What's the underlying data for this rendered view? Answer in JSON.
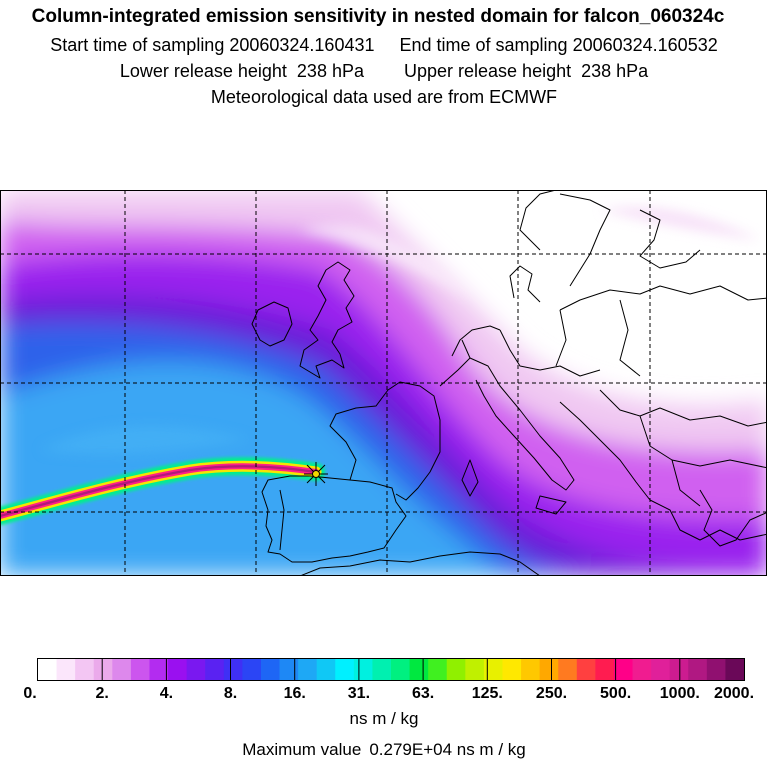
{
  "header": {
    "title": "Column-integrated emission sensitivity in nested domain for falcon_060324c",
    "sampling_line": "Start time of sampling 20060324.160431     End time of sampling 20060324.160532",
    "release_line": "Lower release height  238 hPa        Upper release height  238 hPa",
    "met_line": "Meteorological data used are from ECMWF"
  },
  "colorbar": {
    "tick_labels": [
      "0.",
      "2.",
      "4.",
      "8.",
      "16.",
      "31.",
      "63.",
      "125.",
      "250.",
      "500.",
      "1000.",
      "2000."
    ],
    "colors": [
      "#ffffff",
      "#fbe6fb",
      "#f3c6f3",
      "#ebaaeb",
      "#dd88ec",
      "#cc55ee",
      "#b32cf0",
      "#9a10f0",
      "#7a18f0",
      "#5a22f2",
      "#3f30f5",
      "#2b45f5",
      "#1e66f5",
      "#1e88f5",
      "#1ea8f5",
      "#10c8f5",
      "#00f0ff",
      "#00f0e0",
      "#00f0b0",
      "#00f080",
      "#00e840",
      "#40f020",
      "#90f000",
      "#c0f000",
      "#e8f000",
      "#ffe800",
      "#ffc800",
      "#ffa800",
      "#ff7a20",
      "#ff4040",
      "#ff1c50",
      "#ff0088",
      "#f01c90",
      "#e0209a",
      "#cc1c90",
      "#b01882",
      "#901070",
      "#6a0858"
    ],
    "unit_label": "ns m / kg"
  },
  "max_value": {
    "label": "Maximum value",
    "value": "0.279E+04 ns m / kg"
  },
  "colors": {
    "white": "#ffffff",
    "light_pink": "#f0c8f2",
    "magenta": "#d060f0",
    "violet": "#9a20ee",
    "deep_purple": "#6a1ad8",
    "blue": "#2f62ea",
    "light_blue": "#3aa6f4",
    "sky_blue": "#48b6f6",
    "plume_outer": "#00f08a",
    "plume_mid": "#f5e600",
    "plume_inner": "#ff1e88",
    "plume_core": "#b21a7a",
    "release_marker": "#f5d800"
  }
}
